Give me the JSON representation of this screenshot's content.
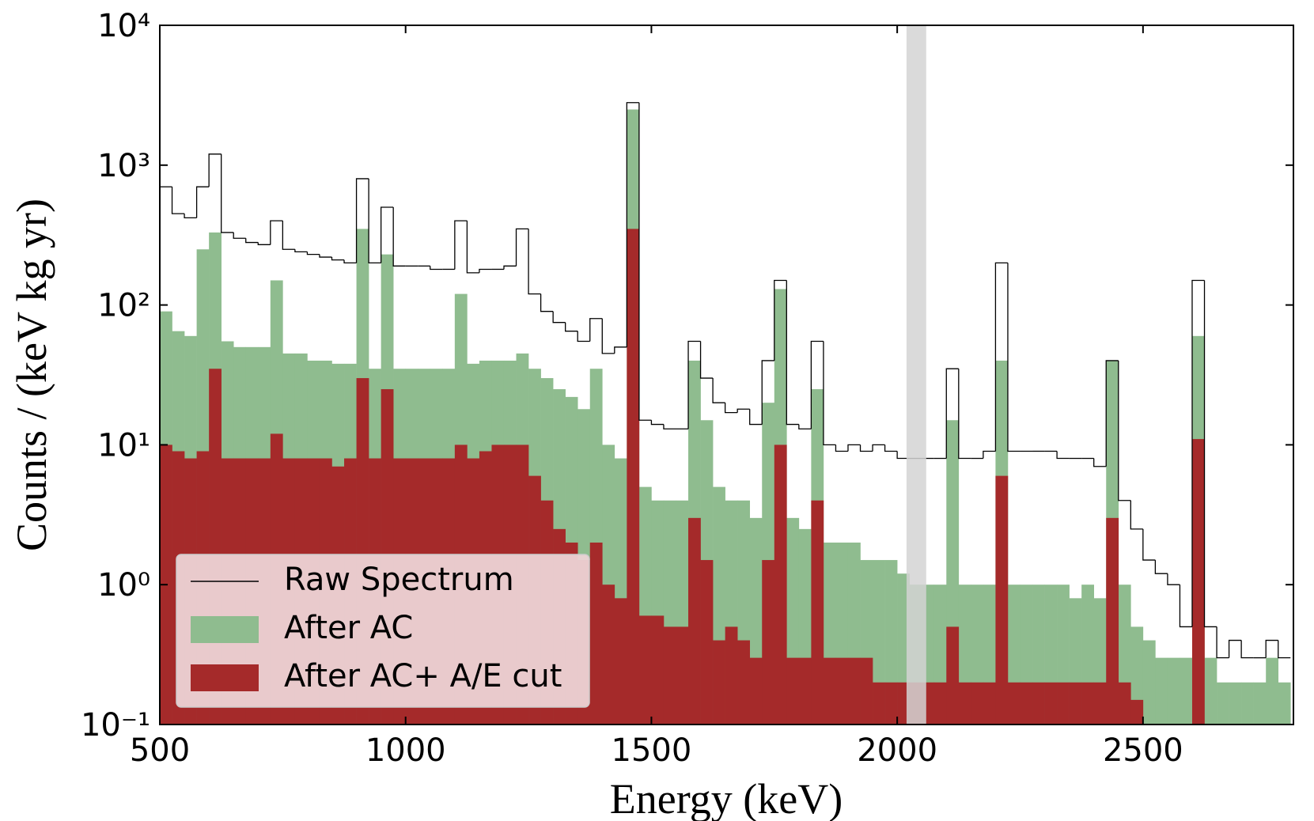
{
  "chart_data": {
    "type": "histogram",
    "xlabel": "Energy (keV)",
    "ylabel": "Counts / (keV kg yr)",
    "xlim": [
      500,
      2806
    ],
    "ylim": [
      0.1,
      10000
    ],
    "yscale": "log",
    "xticks": [
      500,
      1000,
      1500,
      2000,
      2500
    ],
    "yticks": [
      {
        "value": 0.1,
        "label": "10⁻¹"
      },
      {
        "value": 1,
        "label": "10⁰"
      },
      {
        "value": 10,
        "label": "10¹"
      },
      {
        "value": 100,
        "label": "10²"
      },
      {
        "value": 1000,
        "label": "10³"
      },
      {
        "value": 10000,
        "label": "10⁴"
      }
    ],
    "legend": "lower left",
    "highlight_span": {
      "x": [
        2019,
        2059
      ],
      "color": "#d3d3d3"
    },
    "bins": [
      500,
      525,
      550,
      575,
      600,
      625,
      650,
      675,
      700,
      725,
      750,
      775,
      800,
      825,
      850,
      875,
      900,
      925,
      950,
      975,
      1000,
      1025,
      1050,
      1075,
      1100,
      1125,
      1150,
      1175,
      1200,
      1225,
      1250,
      1275,
      1300,
      1325,
      1350,
      1375,
      1400,
      1425,
      1450,
      1475,
      1500,
      1525,
      1550,
      1575,
      1600,
      1625,
      1650,
      1675,
      1700,
      1725,
      1750,
      1775,
      1800,
      1825,
      1850,
      1875,
      1900,
      1925,
      1950,
      1975,
      2000,
      2025,
      2050,
      2075,
      2100,
      2125,
      2150,
      2175,
      2200,
      2225,
      2250,
      2275,
      2300,
      2325,
      2350,
      2375,
      2400,
      2425,
      2450,
      2475,
      2500,
      2525,
      2550,
      2575,
      2600,
      2625,
      2650,
      2675,
      2700,
      2725,
      2750,
      2775,
      2800
    ],
    "series": [
      {
        "name": "Raw Spectrum",
        "style": "step",
        "color": "#000000",
        "values": [
          700,
          450,
          420,
          700,
          1200,
          330,
          300,
          280,
          270,
          400,
          250,
          240,
          230,
          220,
          210,
          200,
          800,
          200,
          500,
          190,
          190,
          190,
          180,
          180,
          400,
          170,
          180,
          180,
          190,
          350,
          120,
          90,
          75,
          65,
          55,
          80,
          45,
          50,
          2800,
          15,
          14,
          13,
          13,
          55,
          30,
          20,
          17,
          18,
          14,
          40,
          150,
          14,
          13,
          55,
          10,
          9,
          10,
          9,
          10,
          9,
          8,
          8,
          8,
          8,
          35,
          8,
          8,
          9,
          200,
          9,
          9,
          9,
          9,
          8,
          8,
          8,
          7,
          40,
          4,
          2.5,
          1.5,
          1.2,
          1,
          0.5,
          150,
          0.5,
          0.3,
          0.4,
          0.3,
          0.3,
          0.4,
          0.3
        ]
      },
      {
        "name": "After AC",
        "style": "filled",
        "color": "#8fbc8f",
        "values": [
          90,
          65,
          60,
          250,
          330,
          55,
          50,
          50,
          50,
          150,
          45,
          45,
          40,
          40,
          38,
          38,
          350,
          35,
          230,
          35,
          35,
          35,
          35,
          35,
          120,
          38,
          40,
          40,
          40,
          45,
          35,
          30,
          25,
          22,
          18,
          35,
          10,
          8,
          2500,
          5,
          4,
          4,
          4,
          40,
          15,
          5,
          4,
          4,
          3,
          20,
          130,
          3,
          2.5,
          25,
          2,
          2,
          2,
          1.5,
          1.5,
          1.5,
          1.2,
          1,
          1,
          1,
          15,
          1,
          1,
          1,
          40,
          1,
          1,
          1,
          1,
          1,
          0.8,
          1,
          0.8,
          40,
          1,
          0.5,
          0.4,
          0.3,
          0.3,
          0.3,
          60,
          0.3,
          0.2,
          0.2,
          0.2,
          0.2,
          0.3,
          0.2
        ]
      },
      {
        "name": "After AC+ A/E cut",
        "style": "filled",
        "color": "#a52a2a",
        "values": [
          10,
          9,
          8,
          9,
          35,
          8,
          8,
          8,
          8,
          12,
          8,
          8,
          8,
          8,
          7,
          8,
          30,
          8,
          25,
          8,
          8,
          8,
          8,
          8,
          10,
          8,
          9,
          10,
          10,
          10,
          6,
          4,
          2.5,
          2,
          1.5,
          2,
          1,
          0.8,
          350,
          0.6,
          0.6,
          0.5,
          0.5,
          3,
          1.5,
          0.4,
          0.5,
          0.4,
          0.3,
          1.5,
          10,
          0.3,
          0.3,
          4,
          0.3,
          0.3,
          0.3,
          0.3,
          0.2,
          0.2,
          0.2,
          0.2,
          0.2,
          0.2,
          0.5,
          0.2,
          0.2,
          0.2,
          6,
          0.2,
          0.2,
          0.2,
          0.2,
          0.2,
          0.2,
          0.2,
          0.2,
          3,
          0.2,
          0.15,
          0,
          0,
          0,
          0,
          11,
          0,
          0,
          0,
          0,
          0,
          0,
          0
        ]
      }
    ]
  }
}
